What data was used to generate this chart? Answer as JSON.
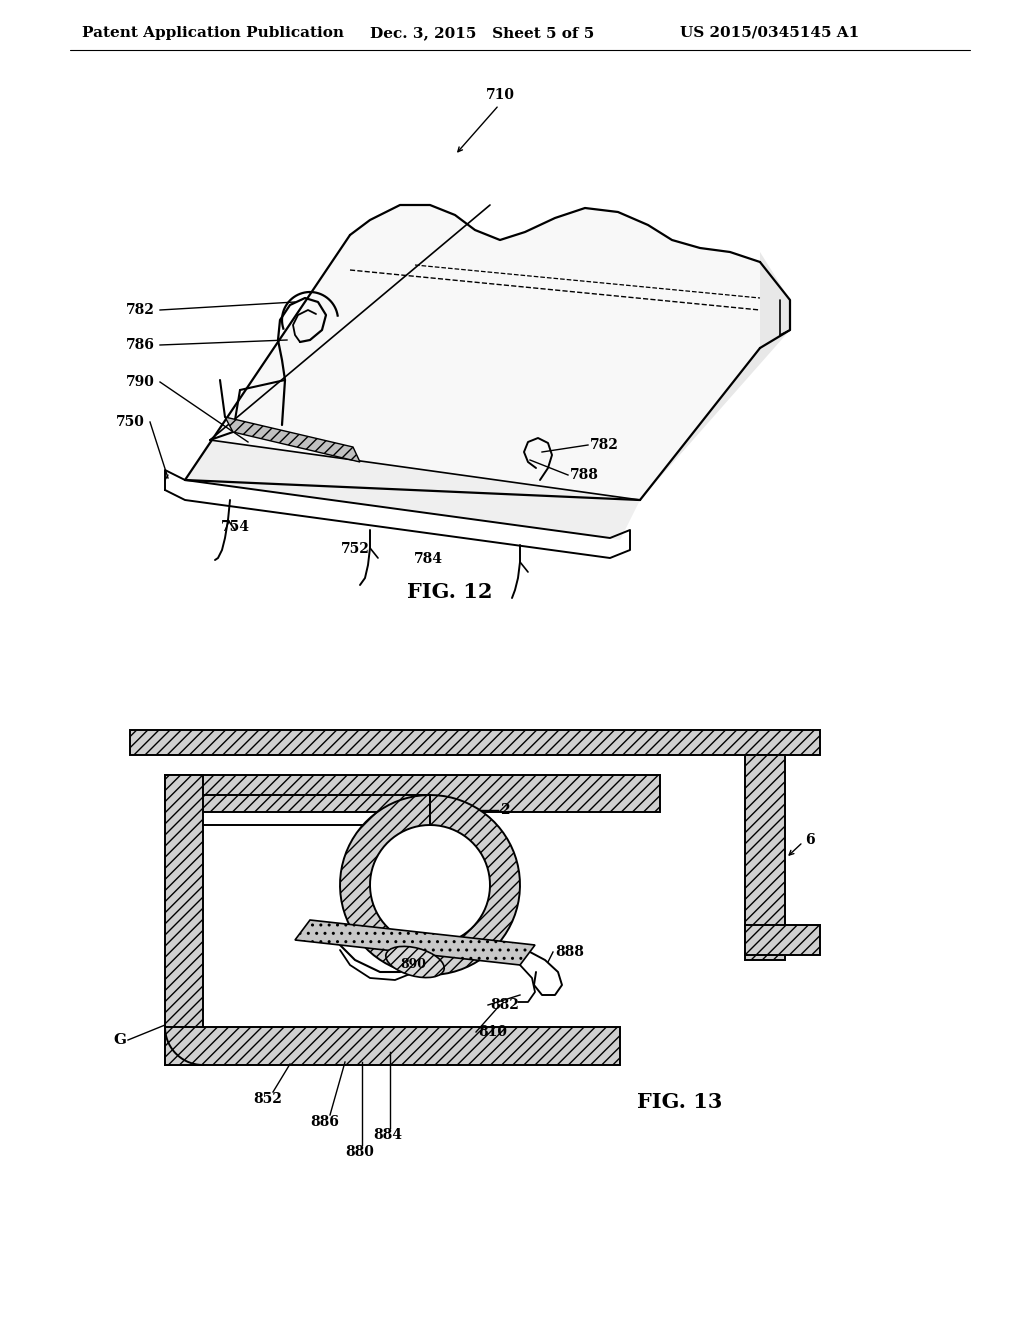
{
  "background_color": "#ffffff",
  "header_left": "Patent Application Publication",
  "header_center": "Dec. 3, 2015   Sheet 5 of 5",
  "header_right": "US 2015/0345145 A1",
  "fig12_label": "FIG. 12",
  "fig13_label": "FIG. 13",
  "lc": "#000000",
  "font_size_header": 11,
  "font_size_label": 14,
  "font_size_ref": 10
}
